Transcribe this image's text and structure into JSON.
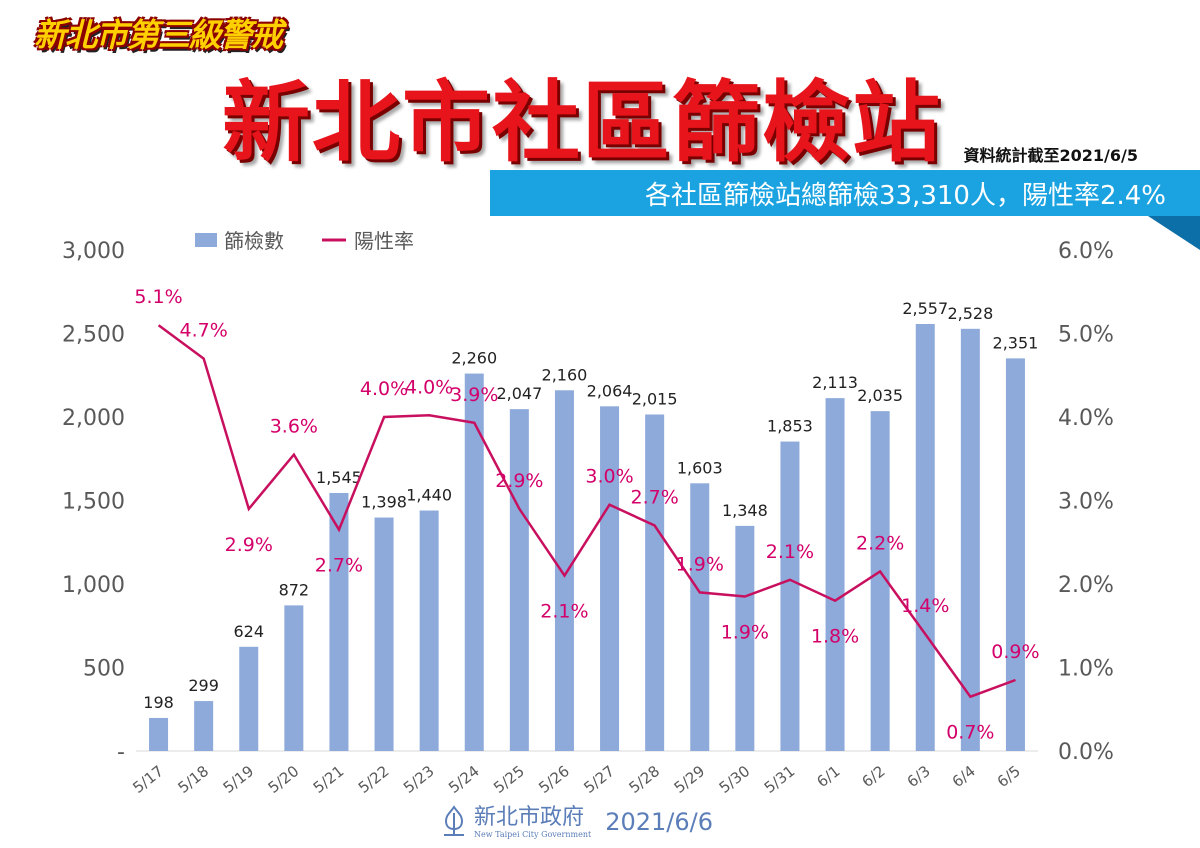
{
  "header": {
    "badge": "新北市第三級警戒",
    "title": "新北市社區篩檢站",
    "as_of": "資料統計截至2021/6/5",
    "banner": "各社區篩檢站總篩檢33,310人，陽性率2.4%"
  },
  "footer": {
    "org_name": "新北市政府",
    "org_sub": "New Taipei City Government",
    "date": "2021/6/6"
  },
  "colors": {
    "bar": "#8eaadb",
    "line": "#c8105f",
    "label_pct": "#d4006a",
    "axis_text": "#595959"
  },
  "chart_data": {
    "type": "bar",
    "categories": [
      "5/17",
      "5/18",
      "5/19",
      "5/20",
      "5/21",
      "5/22",
      "5/23",
      "5/24",
      "5/25",
      "5/26",
      "5/27",
      "5/28",
      "5/29",
      "5/30",
      "5/31",
      "6/1",
      "6/2",
      "6/3",
      "6/4",
      "6/5"
    ],
    "series": [
      {
        "name": "篩檢數",
        "type": "bar",
        "axis": "left",
        "values": [
          198,
          299,
          624,
          872,
          1545,
          1398,
          1440,
          2260,
          2047,
          2160,
          2064,
          2015,
          1603,
          1348,
          1853,
          2113,
          2035,
          2557,
          2528,
          2351
        ],
        "labels": [
          "198",
          "299",
          "624",
          "872",
          "1,545",
          "1,398",
          "1,440",
          "2,260",
          "2,047",
          "2,160",
          "2,064",
          "2,015",
          "1,603",
          "1,348",
          "1,853",
          "2,113",
          "2,035",
          "2,557",
          "2,528",
          "2,351"
        ]
      },
      {
        "name": "陽性率",
        "type": "line",
        "axis": "right",
        "values": [
          5.1,
          4.7,
          2.9,
          3.55,
          2.65,
          4.0,
          4.02,
          3.93,
          2.9,
          2.1,
          2.95,
          2.7,
          1.9,
          1.85,
          2.05,
          1.8,
          2.15,
          1.4,
          0.65,
          0.85
        ],
        "labels": [
          "5.1%",
          "4.7%",
          "2.9%",
          "3.6%",
          "2.7%",
          "4.0%",
          "4.0%",
          "3.9%",
          "2.9%",
          "2.1%",
          "3.0%",
          "2.7%",
          "1.9%",
          "1.9%",
          "2.1%",
          "1.8%",
          "2.2%",
          "1.4%",
          "0.7%",
          "0.9%"
        ]
      }
    ],
    "y_left": {
      "min": 0,
      "max": 3000,
      "ticks": [
        "-",
        "500",
        "1,000",
        "1,500",
        "2,000",
        "2,500",
        "3,000"
      ]
    },
    "y_right": {
      "min": 0,
      "max": 6,
      "ticks": [
        "0.0%",
        "1.0%",
        "2.0%",
        "3.0%",
        "4.0%",
        "5.0%",
        "6.0%"
      ]
    },
    "legend": {
      "position": "top-left",
      "items": [
        "篩檢數",
        "陽性率"
      ]
    },
    "grid": false
  }
}
